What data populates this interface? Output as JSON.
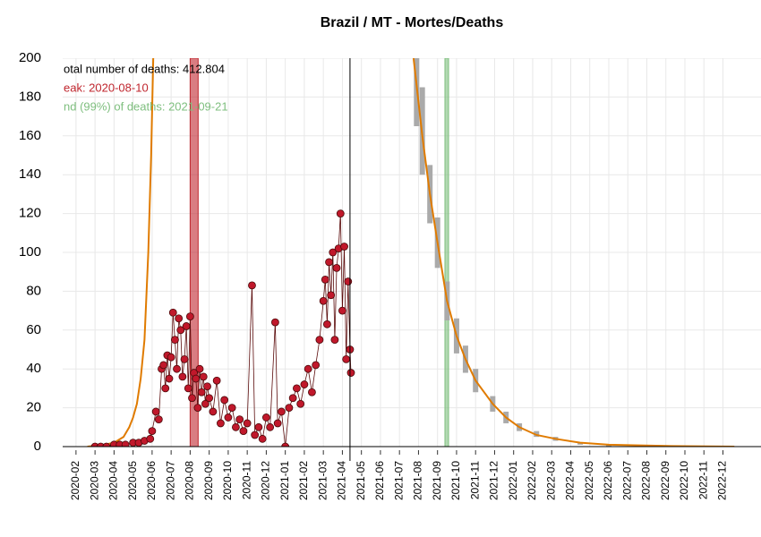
{
  "chart_data": {
    "type": "line",
    "title": "Brazil / MT - Mortes/Deaths",
    "xlim": [
      0.3,
      37
    ],
    "ylim": [
      0,
      200
    ],
    "yticks": [
      0,
      20,
      40,
      60,
      80,
      100,
      120,
      140,
      160,
      180,
      200
    ],
    "xticks": [
      {
        "value": 1,
        "label": "2020-02"
      },
      {
        "value": 2,
        "label": "2020-03"
      },
      {
        "value": 3,
        "label": "2020-04"
      },
      {
        "value": 4,
        "label": "2020-05"
      },
      {
        "value": 5,
        "label": "2020-06"
      },
      {
        "value": 6,
        "label": "2020-07"
      },
      {
        "value": 7,
        "label": "2020-08"
      },
      {
        "value": 8,
        "label": "2020-09"
      },
      {
        "value": 9,
        "label": "2020-10"
      },
      {
        "value": 10,
        "label": "2020-11"
      },
      {
        "value": 11,
        "label": "2020-12"
      },
      {
        "value": 12,
        "label": "2021-01"
      },
      {
        "value": 13,
        "label": "2021-02"
      },
      {
        "value": 14,
        "label": "2021-03"
      },
      {
        "value": 15,
        "label": "2021-04"
      },
      {
        "value": 16,
        "label": "2021-05"
      },
      {
        "value": 17,
        "label": "2021-06"
      },
      {
        "value": 18,
        "label": "2021-07"
      },
      {
        "value": 19,
        "label": "2021-08"
      },
      {
        "value": 20,
        "label": "2021-09"
      },
      {
        "value": 21,
        "label": "2021-10"
      },
      {
        "value": 22,
        "label": "2021-11"
      },
      {
        "value": 23,
        "label": "2021-12"
      },
      {
        "value": 24,
        "label": "2022-01"
      },
      {
        "value": 25,
        "label": "2022-02"
      },
      {
        "value": 26,
        "label": "2022-03"
      },
      {
        "value": 27,
        "label": "2022-04"
      },
      {
        "value": 28,
        "label": "2022-05"
      },
      {
        "value": 29,
        "label": "2022-06"
      },
      {
        "value": 30,
        "label": "2022-07"
      },
      {
        "value": 31,
        "label": "2022-08"
      },
      {
        "value": 32,
        "label": "2022-09"
      },
      {
        "value": 33,
        "label": "2022-10"
      },
      {
        "value": 34,
        "label": "2022-11"
      },
      {
        "value": 35,
        "label": "2022-12"
      }
    ],
    "grid": true,
    "bands": [
      {
        "xlim": [
          7.0,
          7.42
        ],
        "color": "#c0262e"
      },
      {
        "xlim": [
          20.39,
          20.58
        ],
        "color": "#7fbf7f"
      }
    ],
    "vline": 15.4,
    "annotations": [
      {
        "text": "otal number of deaths: 412.804",
        "color": "#000000"
      },
      {
        "text": "eak: 2020-08-10",
        "color": "#c0262e"
      },
      {
        "text": "nd (99%) of deaths: 2021-09-21",
        "color": "#7fbf7f"
      }
    ],
    "series": [
      {
        "kind": "band",
        "color": "#aaaaaa",
        "x": [
          18.9,
          19.2,
          19.6,
          20.0,
          20.5,
          21.0,
          21.47,
          22.0,
          22.9,
          23.6,
          24.3,
          25.2,
          26.2,
          27.5,
          29.0
        ],
        "lower": [
          165,
          140,
          115,
          92,
          65,
          48,
          38,
          28,
          18,
          12,
          8,
          5,
          3,
          1,
          0
        ],
        "upper": [
          200,
          185,
          145,
          118,
          85,
          66,
          52,
          40,
          26,
          18,
          12,
          8,
          5,
          2,
          1
        ]
      },
      {
        "kind": "line",
        "color": "#e07b00",
        "x": [
          1.6,
          2.5,
          3.0,
          3.5,
          3.8,
          4.0,
          4.2,
          4.4,
          4.6,
          4.8,
          4.95,
          5.06
        ],
        "values": [
          0,
          1,
          2,
          5,
          10,
          15,
          22,
          35,
          55,
          100,
          150,
          200
        ]
      },
      {
        "kind": "line",
        "color": "#e07b00",
        "x": [
          18.74,
          19.2,
          19.6,
          20.0,
          20.5,
          21.0,
          21.47,
          22.0,
          22.9,
          23.6,
          24.3,
          25.2,
          26.2,
          27.5,
          29.0,
          32.3,
          35.6
        ],
        "values": [
          200,
          160,
          130,
          105,
          75,
          57,
          45,
          34,
          22,
          15,
          10,
          6,
          4,
          2,
          1,
          0.3,
          0
        ]
      },
      {
        "kind": "points",
        "color": "#c0182b",
        "x": [
          2.0,
          2.3,
          2.6,
          3.0,
          3.3,
          3.6,
          4.0,
          4.3,
          4.6,
          4.9,
          5.0,
          5.2,
          5.35,
          5.5,
          5.6,
          5.7,
          5.8,
          5.9,
          6.0,
          6.1,
          6.2,
          6.3,
          6.4,
          6.5,
          6.6,
          6.7,
          6.8,
          6.9,
          7.0,
          7.1,
          7.2,
          7.3,
          7.4,
          7.5,
          7.6,
          7.7,
          7.8,
          7.9,
          8.0,
          8.2,
          8.4,
          8.6,
          8.8,
          9.0,
          9.2,
          9.4,
          9.6,
          9.8,
          10.0,
          10.25,
          10.4,
          10.6,
          10.8,
          11.0,
          11.2,
          11.47,
          11.6,
          11.8,
          12.0,
          12.2,
          12.4,
          12.6,
          12.8,
          13.0,
          13.2,
          13.4,
          13.6,
          13.8,
          14.0,
          14.1,
          14.2,
          14.3,
          14.4,
          14.5,
          14.6,
          14.7,
          14.8,
          14.9,
          15.0,
          15.1,
          15.2,
          15.3,
          15.4,
          15.45
        ],
        "values": [
          0,
          0,
          0,
          1,
          1,
          1,
          2,
          2,
          3,
          4,
          8,
          18,
          14,
          40,
          42,
          30,
          47,
          35,
          46,
          69,
          55,
          40,
          66,
          60,
          36,
          45,
          62,
          30,
          67,
          25,
          38,
          35,
          20,
          40,
          28,
          36,
          22,
          31,
          25,
          18,
          34,
          12,
          24,
          15,
          20,
          10,
          14,
          8,
          12,
          83,
          6,
          10,
          4,
          15,
          10,
          64,
          12,
          18,
          0,
          20,
          25,
          30,
          22,
          32,
          40,
          28,
          42,
          55,
          75,
          86,
          63,
          95,
          78,
          100,
          55,
          92,
          102,
          120,
          70,
          103,
          45,
          85,
          50,
          38
        ]
      }
    ]
  }
}
